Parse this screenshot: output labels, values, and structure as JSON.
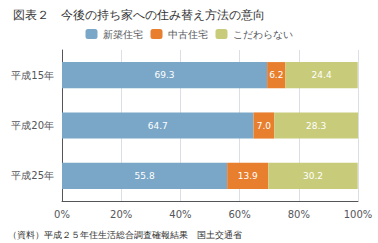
{
  "chart_data": {
    "type": "bar",
    "orientation": "horizontal",
    "stacked": true,
    "data_labels": true,
    "title": "図表２　今後の持ち家への住み替え方法の意向",
    "annotation": "（資料）平成２５年住生活総合調査確報結果　国土交通省",
    "categories": [
      "平成15年",
      "平成20年",
      "平成25年"
    ],
    "series": [
      {
        "name": "新築住宅",
        "color": "#7aa7c7",
        "values": [
          69.3,
          64.7,
          55.8
        ]
      },
      {
        "name": "中古住宅",
        "color": "#e87f2e",
        "values": [
          6.2,
          7.0,
          13.9
        ],
        "value_labels": [
          "6.2",
          "7.0",
          "13.9"
        ]
      },
      {
        "name": "こだわらない",
        "color": "#c8cc7a",
        "values": [
          24.4,
          28.3,
          30.2
        ]
      }
    ],
    "xlim": [
      0,
      100
    ],
    "xticks": [
      {
        "value": 0,
        "label": "0%"
      },
      {
        "value": 20,
        "label": "20%"
      },
      {
        "value": 40,
        "label": "40%"
      },
      {
        "value": 60,
        "label": "60%"
      },
      {
        "value": 80,
        "label": "80%"
      },
      {
        "value": 100,
        "label": "100%"
      }
    ],
    "grid": true,
    "legend": "top"
  }
}
